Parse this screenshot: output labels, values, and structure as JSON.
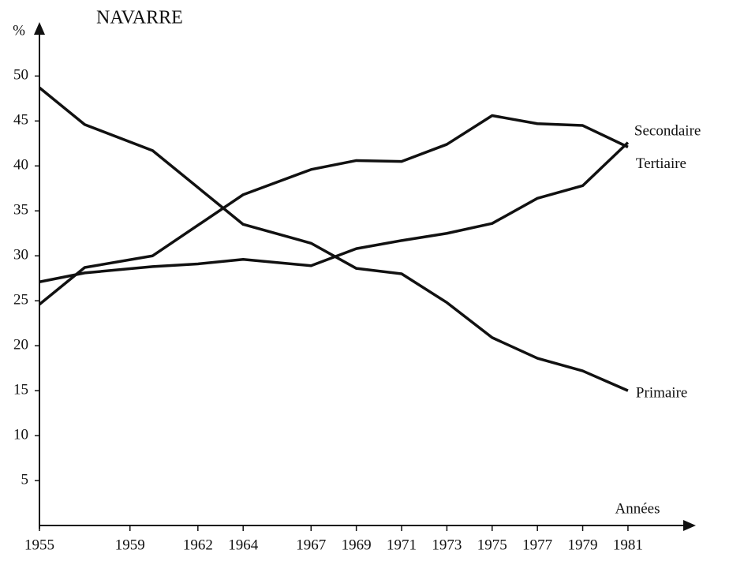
{
  "chart_data": {
    "type": "line",
    "title": "NAVARRE",
    "ylabel": "%",
    "xlabel": "Années",
    "xlim": [
      1955,
      1984
    ],
    "xticks": [
      1955,
      1959,
      1962,
      1964,
      1967,
      1969,
      1971,
      1973,
      1975,
      1977,
      1979,
      1981
    ],
    "ylim": [
      0,
      56
    ],
    "yticks": [
      5,
      10,
      15,
      20,
      25,
      30,
      35,
      40,
      45,
      50
    ],
    "series": [
      {
        "name": "Primaire",
        "color": "#111111",
        "x": [
          1955,
          1957,
          1960,
          1964,
          1967,
          1969,
          1971,
          1973,
          1975,
          1977,
          1979,
          1981
        ],
        "values": [
          48.7,
          44.6,
          41.7,
          33.5,
          31.4,
          28.6,
          28.0,
          24.8,
          20.9,
          18.6,
          17.2,
          15.0
        ]
      },
      {
        "name": "Secondaire",
        "color": "#111111",
        "x": [
          1955,
          1957,
          1960,
          1964,
          1967,
          1969,
          1971,
          1973,
          1975,
          1977,
          1979,
          1981
        ],
        "values": [
          24.6,
          28.7,
          30.0,
          36.8,
          39.6,
          40.6,
          40.5,
          42.4,
          45.6,
          44.7,
          44.5,
          42.1
        ]
      },
      {
        "name": "Tertiaire",
        "color": "#111111",
        "x": [
          1955,
          1957,
          1960,
          1962,
          1964,
          1967,
          1969,
          1971,
          1973,
          1975,
          1977,
          1979,
          1981
        ],
        "values": [
          27.1,
          28.1,
          28.8,
          29.1,
          29.6,
          28.9,
          30.8,
          31.7,
          32.5,
          33.6,
          36.4,
          37.8,
          42.6
        ]
      }
    ]
  }
}
